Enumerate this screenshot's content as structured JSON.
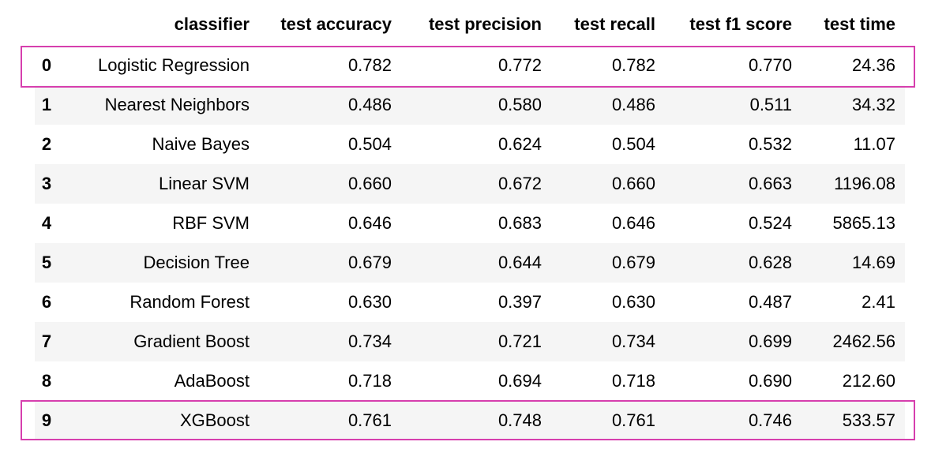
{
  "table": {
    "columns": {
      "classifier": "classifier",
      "accuracy": "test accuracy",
      "precision": "test precision",
      "recall": "test recall",
      "f1": "test f1 score",
      "time": "test time"
    },
    "rows": [
      {
        "index": "0",
        "classifier": "Logistic Regression",
        "accuracy": "0.782",
        "precision": "0.772",
        "recall": "0.782",
        "f1": "0.770",
        "time": "24.36"
      },
      {
        "index": "1",
        "classifier": "Nearest Neighbors",
        "accuracy": "0.486",
        "precision": "0.580",
        "recall": "0.486",
        "f1": "0.511",
        "time": "34.32"
      },
      {
        "index": "2",
        "classifier": "Naive Bayes",
        "accuracy": "0.504",
        "precision": "0.624",
        "recall": "0.504",
        "f1": "0.532",
        "time": "11.07"
      },
      {
        "index": "3",
        "classifier": "Linear SVM",
        "accuracy": "0.660",
        "precision": "0.672",
        "recall": "0.660",
        "f1": "0.663",
        "time": "1196.08"
      },
      {
        "index": "4",
        "classifier": "RBF SVM",
        "accuracy": "0.646",
        "precision": "0.683",
        "recall": "0.646",
        "f1": "0.524",
        "time": "5865.13"
      },
      {
        "index": "5",
        "classifier": "Decision Tree",
        "accuracy": "0.679",
        "precision": "0.644",
        "recall": "0.679",
        "f1": "0.628",
        "time": "14.69"
      },
      {
        "index": "6",
        "classifier": "Random Forest",
        "accuracy": "0.630",
        "precision": "0.397",
        "recall": "0.630",
        "f1": "0.487",
        "time": "2.41"
      },
      {
        "index": "7",
        "classifier": "Gradient Boost",
        "accuracy": "0.734",
        "precision": "0.721",
        "recall": "0.734",
        "f1": "0.699",
        "time": "2462.56"
      },
      {
        "index": "8",
        "classifier": "AdaBoost",
        "accuracy": "0.718",
        "precision": "0.694",
        "recall": "0.718",
        "f1": "0.690",
        "time": "212.60"
      },
      {
        "index": "9",
        "classifier": "XGBoost",
        "accuracy": "0.761",
        "precision": "0.748",
        "recall": "0.761",
        "f1": "0.746",
        "time": "533.57"
      }
    ]
  },
  "colors": {
    "stripe": "#f5f5f5",
    "highlight_border": "#d63fae"
  }
}
